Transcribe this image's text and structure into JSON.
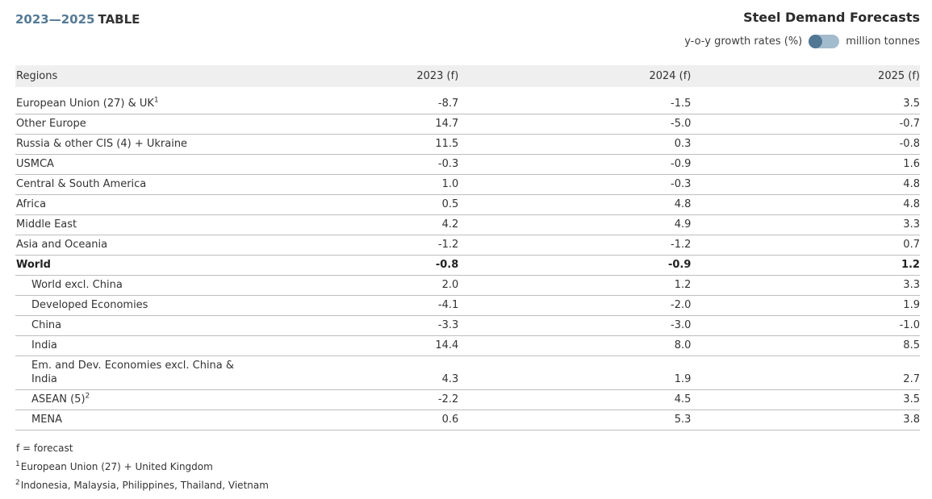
{
  "page": {
    "period_label": "2023—2025",
    "view_label": "TABLE",
    "title": "Steel Demand Forecasts",
    "accent_color": "#557a96",
    "toggle": {
      "left_label": "y-o-y growth rates (%)",
      "right_label": "million tonnes",
      "selected": "y-o-y growth rates (%)",
      "knob_color": "#527795",
      "track_color": "#a3bccd"
    }
  },
  "table": {
    "columns": [
      "Regions",
      "2023 (f)",
      "2024 (f)",
      "2025 (f)"
    ],
    "rows": [
      {
        "label": "European Union (27) & UK",
        "sup": "1",
        "values": [
          "-8.7",
          "-1.5",
          "3.5"
        ]
      },
      {
        "label": "Other Europe",
        "values": [
          "14.7",
          "-5.0",
          "-0.7"
        ]
      },
      {
        "label": "Russia & other CIS (4) + Ukraine",
        "values": [
          "11.5",
          "0.3",
          "-0.8"
        ]
      },
      {
        "label": "USMCA",
        "values": [
          "-0.3",
          "-0.9",
          "1.6"
        ]
      },
      {
        "label": "Central & South America",
        "values": [
          "1.0",
          "-0.3",
          "4.8"
        ]
      },
      {
        "label": "Africa",
        "values": [
          "0.5",
          "4.8",
          "4.8"
        ]
      },
      {
        "label": "Middle East",
        "values": [
          "4.2",
          "4.9",
          "3.3"
        ]
      },
      {
        "label": "Asia and Oceania",
        "values": [
          "-1.2",
          "-1.2",
          "0.7"
        ]
      },
      {
        "label": "World",
        "bold": true,
        "values": [
          "-0.8",
          "-0.9",
          "1.2"
        ]
      },
      {
        "label": "World excl. China",
        "indent": true,
        "values": [
          "2.0",
          "1.2",
          "3.3"
        ]
      },
      {
        "label": "Developed Economies",
        "indent": true,
        "values": [
          "-4.1",
          "-2.0",
          "1.9"
        ]
      },
      {
        "label": "China",
        "indent": true,
        "values": [
          "-3.3",
          "-3.0",
          "-1.0"
        ]
      },
      {
        "label": "India",
        "indent": true,
        "values": [
          "14.4",
          "8.0",
          "8.5"
        ]
      },
      {
        "label": "Em. and Dev. Economies excl. China &\nIndia",
        "indent": true,
        "values": [
          "4.3",
          "1.9",
          "2.7"
        ]
      },
      {
        "label": "ASEAN (5)",
        "sup": "2",
        "indent": true,
        "values": [
          "-2.2",
          "4.5",
          "3.5"
        ]
      },
      {
        "label": "MENA",
        "indent": true,
        "values": [
          "0.6",
          "5.3",
          "3.8"
        ]
      }
    ]
  },
  "footnotes": [
    {
      "text": "f = forecast"
    },
    {
      "sup": "1",
      "text": "European Union (27) + United Kingdom"
    },
    {
      "sup": "2",
      "text": "Indonesia, Malaysia, Philippines, Thailand, Vietnam"
    }
  ]
}
